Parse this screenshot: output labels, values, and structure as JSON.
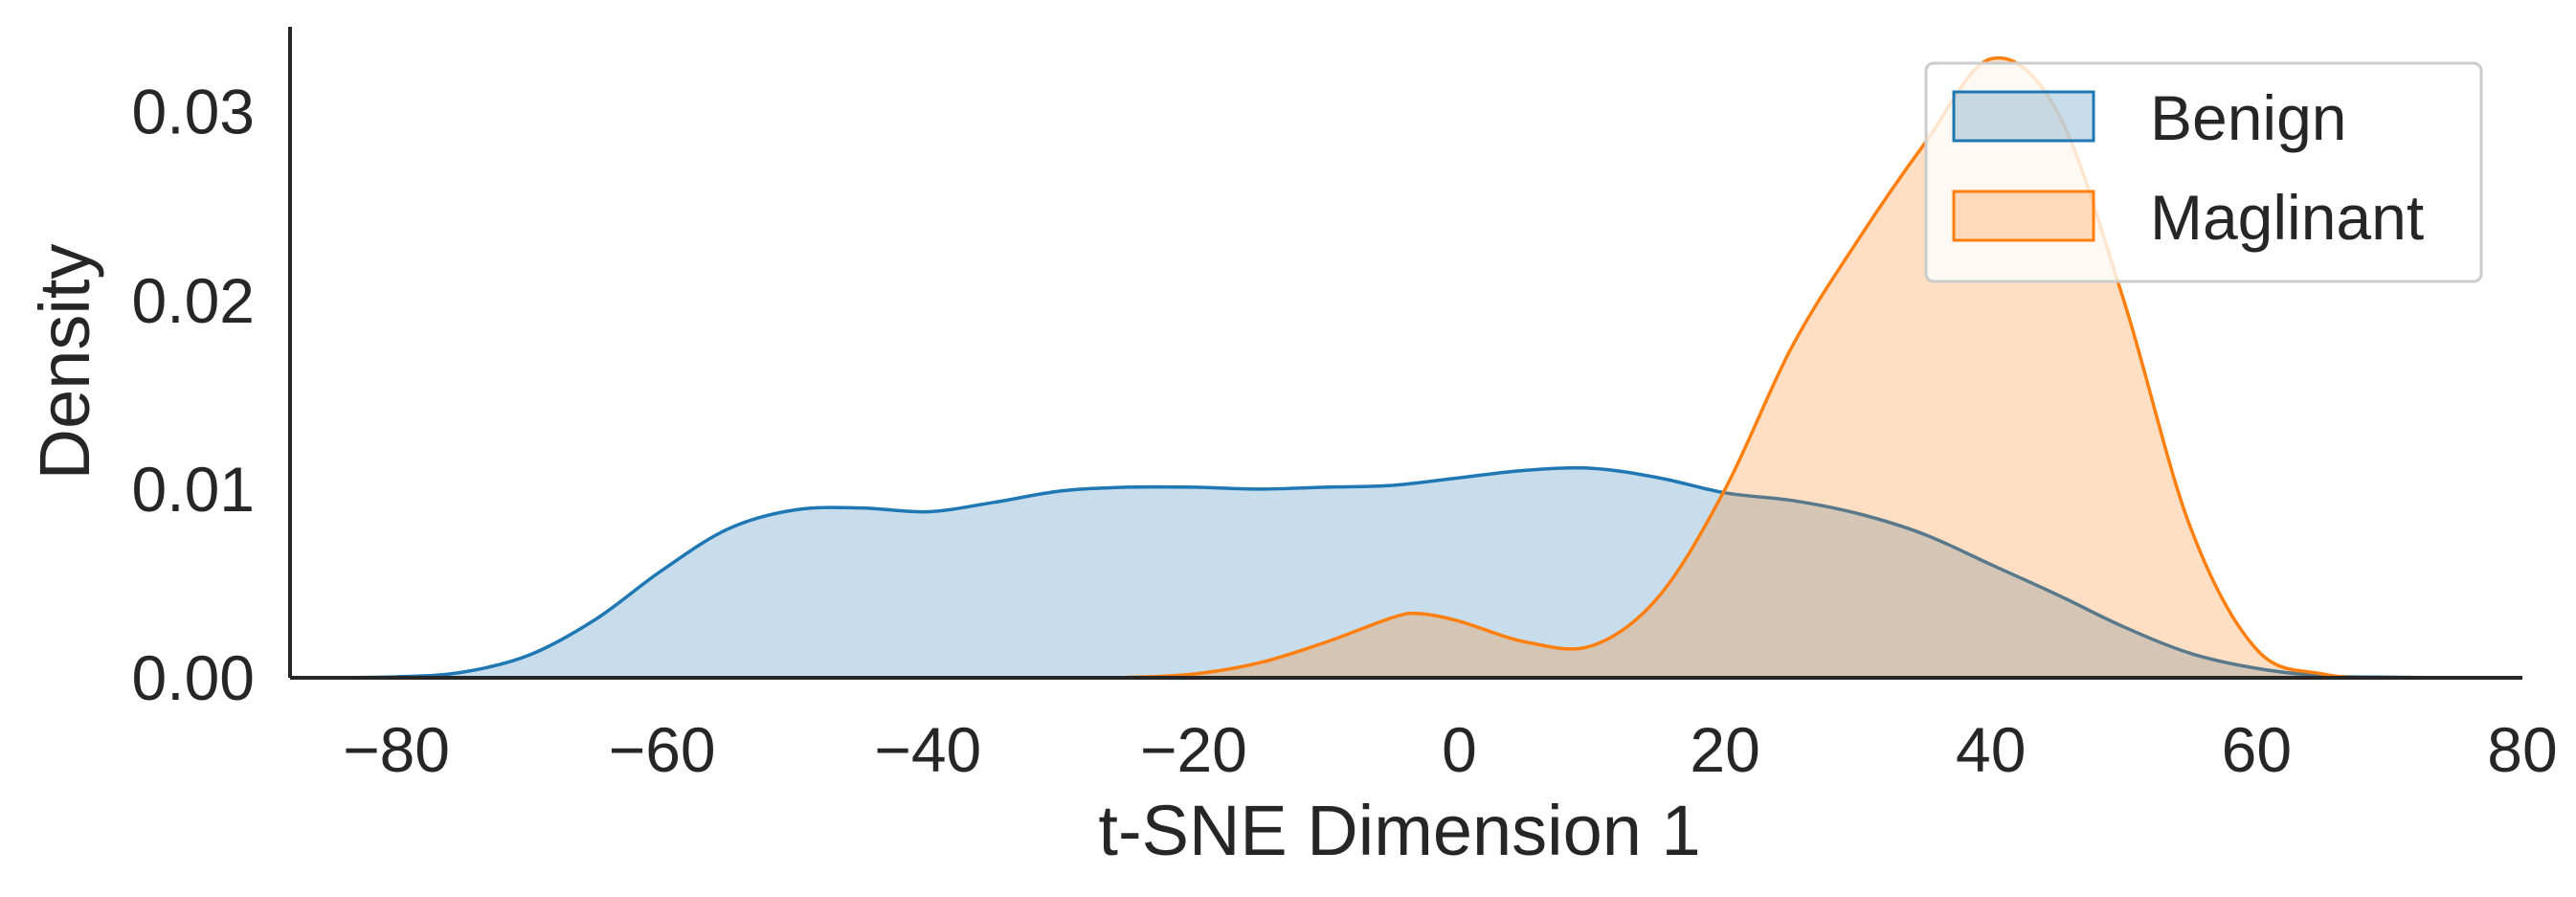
{
  "chart_data": {
    "type": "area",
    "title": "",
    "xlabel": "t-SNE Dimension 1",
    "ylabel": "Density",
    "xlim": [
      -88,
      80
    ],
    "ylim": [
      0,
      0.0345
    ],
    "xticks": [
      -80,
      -60,
      -40,
      -20,
      0,
      20,
      40,
      60,
      80
    ],
    "xtick_labels": [
      "−80",
      "−60",
      "−40",
      "−20",
      "0",
      "20",
      "40",
      "60",
      "80"
    ],
    "yticks": [
      0.0,
      0.01,
      0.02,
      0.03
    ],
    "ytick_labels": [
      "0.00",
      "0.01",
      "0.02",
      "0.03"
    ],
    "grid": false,
    "legend_position": "top-right",
    "series": [
      {
        "name": "Benign",
        "color": "#1f77b4",
        "x": [
          -88,
          -80,
          -75,
          -70,
          -65,
          -60,
          -55,
          -50,
          -45,
          -40,
          -35,
          -30,
          -25,
          -20,
          -15,
          -10,
          -5,
          0,
          5,
          10,
          15,
          20,
          25,
          30,
          35,
          40,
          45,
          50,
          55,
          60,
          65,
          70,
          75,
          80
        ],
        "y": [
          0.0,
          5e-05,
          0.0003,
          0.0012,
          0.0031,
          0.0057,
          0.0079,
          0.0089,
          0.009,
          0.0088,
          0.0093,
          0.0099,
          0.0101,
          0.0101,
          0.01,
          0.0101,
          0.0102,
          0.0106,
          0.011,
          0.0111,
          0.0106,
          0.0098,
          0.0094,
          0.0087,
          0.0076,
          0.006,
          0.0044,
          0.0027,
          0.0013,
          0.0005,
          0.0001,
          3e-05,
          0.0,
          0.0
        ]
      },
      {
        "name": "Maglinant",
        "color": "#ff7f0e",
        "x": [
          -88,
          -30,
          -25,
          -20,
          -15,
          -10,
          -5,
          -3,
          0,
          5,
          10,
          15,
          20,
          25,
          30,
          35,
          40,
          45,
          50,
          55,
          60,
          65,
          70,
          80
        ],
        "y": [
          0.0,
          0.0,
          2e-05,
          0.0002,
          0.0008,
          0.0019,
          0.0032,
          0.0034,
          0.003,
          0.0019,
          0.0017,
          0.0043,
          0.01,
          0.0175,
          0.0232,
          0.0283,
          0.0328,
          0.03,
          0.02,
          0.008,
          0.0015,
          0.0002,
          0.0,
          0.0
        ]
      }
    ]
  }
}
